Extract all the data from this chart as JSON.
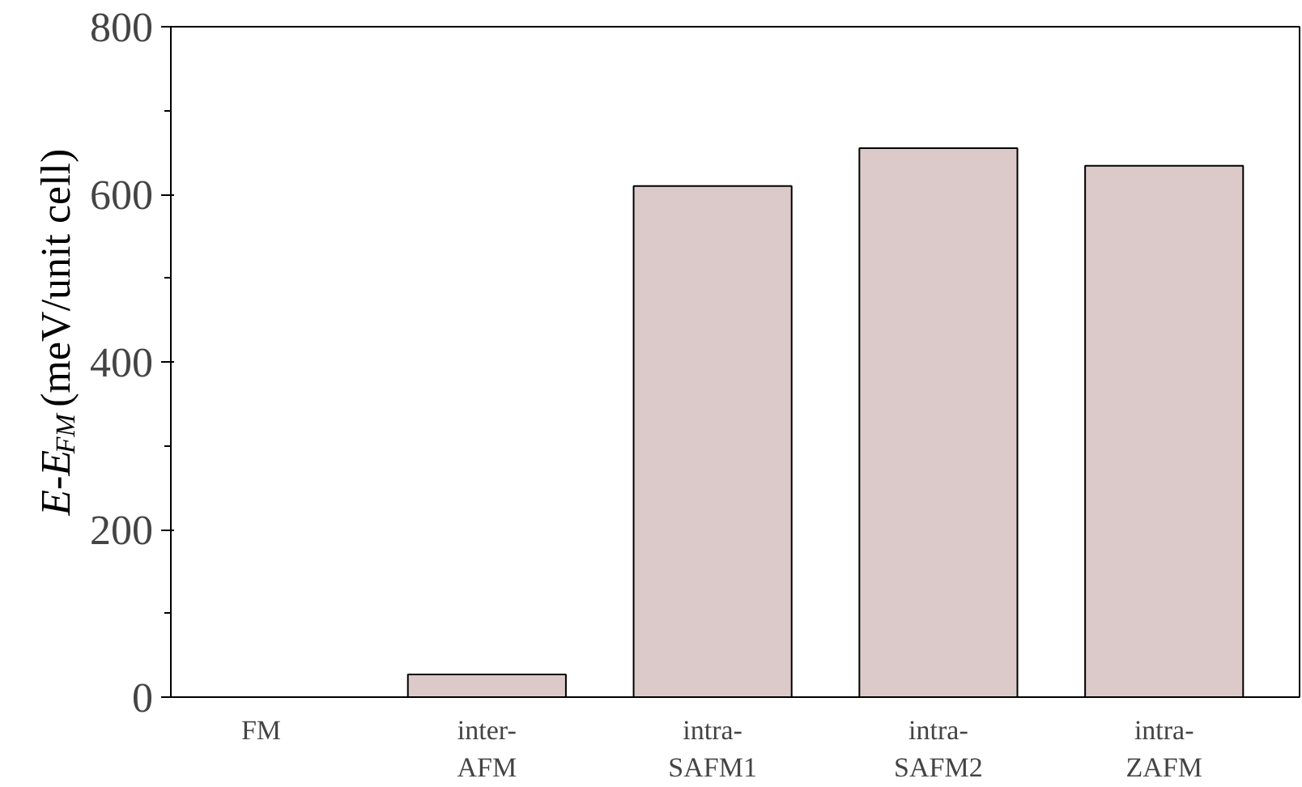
{
  "chart_data": {
    "type": "bar",
    "ylabel": "E-E$_{FM}$ (meV/unit cell)",
    "categories": [
      "FM",
      "inter-\nAFM",
      "intra-\nSAFM1",
      "intra-\nSAFM2",
      "intra-\nZAFM"
    ],
    "values": [
      0,
      27,
      610,
      655,
      634
    ],
    "color": "#dccaca",
    "ylim": [
      0,
      800
    ],
    "yticks": [
      0,
      200,
      400,
      600,
      800
    ],
    "grid": false
  }
}
